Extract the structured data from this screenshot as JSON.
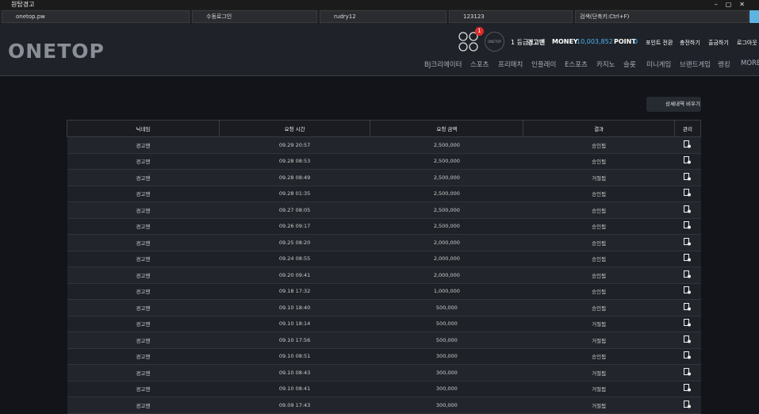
{
  "window": {
    "title": "원탑경고"
  },
  "toolbar": {
    "url": "onetop.pw",
    "login_mode": "수동로그인",
    "username": "rudry12",
    "password": "123123",
    "search": "검색(단축키:Ctrl+F)"
  },
  "header": {
    "logo": "ONETOP",
    "badge": "1",
    "avatar_text": "ONETOP",
    "level": "1 등급",
    "nickname": "경고맨",
    "money_label": "MONEY",
    "money": "10,003,852",
    "point_label": "POINT",
    "point": "0",
    "links": [
      "포인트 전환",
      "충전하기",
      "출금하기",
      "로그아웃"
    ],
    "nav": [
      "BJ크리에이터",
      "스포츠",
      "프리매치",
      "인플레이",
      "E스포츠",
      "카지노",
      "슬롯",
      "미니게임",
      "브랜드게임",
      "랭킹",
      "MORE"
    ]
  },
  "clear_button": "상세내역 비우기",
  "table": {
    "columns": [
      "닉네임",
      "요청 시간",
      "요청 금액",
      "결과",
      "관리"
    ],
    "rows": [
      [
        "경고맨",
        "09.29 20:57",
        "2,500,000",
        "승인됨"
      ],
      [
        "경고맨",
        "09.28 08:53",
        "2,500,000",
        "승인됨"
      ],
      [
        "경고맨",
        "09.28 08:49",
        "2,500,000",
        "거절됨"
      ],
      [
        "경고맨",
        "09.28 01:35",
        "2,500,000",
        "승인됨"
      ],
      [
        "경고맨",
        "09.27 08:05",
        "2,500,000",
        "승인됨"
      ],
      [
        "경고맨",
        "09.26 09:17",
        "2,500,000",
        "승인됨"
      ],
      [
        "경고맨",
        "09.25 08:20",
        "2,000,000",
        "승인됨"
      ],
      [
        "경고맨",
        "09.24 08:55",
        "2,000,000",
        "승인됨"
      ],
      [
        "경고맨",
        "09.20 09:41",
        "2,000,000",
        "승인됨"
      ],
      [
        "경고맨",
        "09.18 17:32",
        "1,000,000",
        "승인됨"
      ],
      [
        "경고맨",
        "09.10 18:40",
        "500,000",
        "승인됨"
      ],
      [
        "경고맨",
        "09.10 18:14",
        "500,000",
        "거절됨"
      ],
      [
        "경고맨",
        "09.10 17:56",
        "500,000",
        "거절됨"
      ],
      [
        "경고맨",
        "09.10 08:51",
        "300,000",
        "승인됨"
      ],
      [
        "경고맨",
        "09.10 08:43",
        "300,000",
        "거절됨"
      ],
      [
        "경고맨",
        "09.10 08:41",
        "300,000",
        "거절됨"
      ],
      [
        "경고맨",
        "09.09 17:43",
        "300,000",
        "거절됨"
      ]
    ]
  }
}
